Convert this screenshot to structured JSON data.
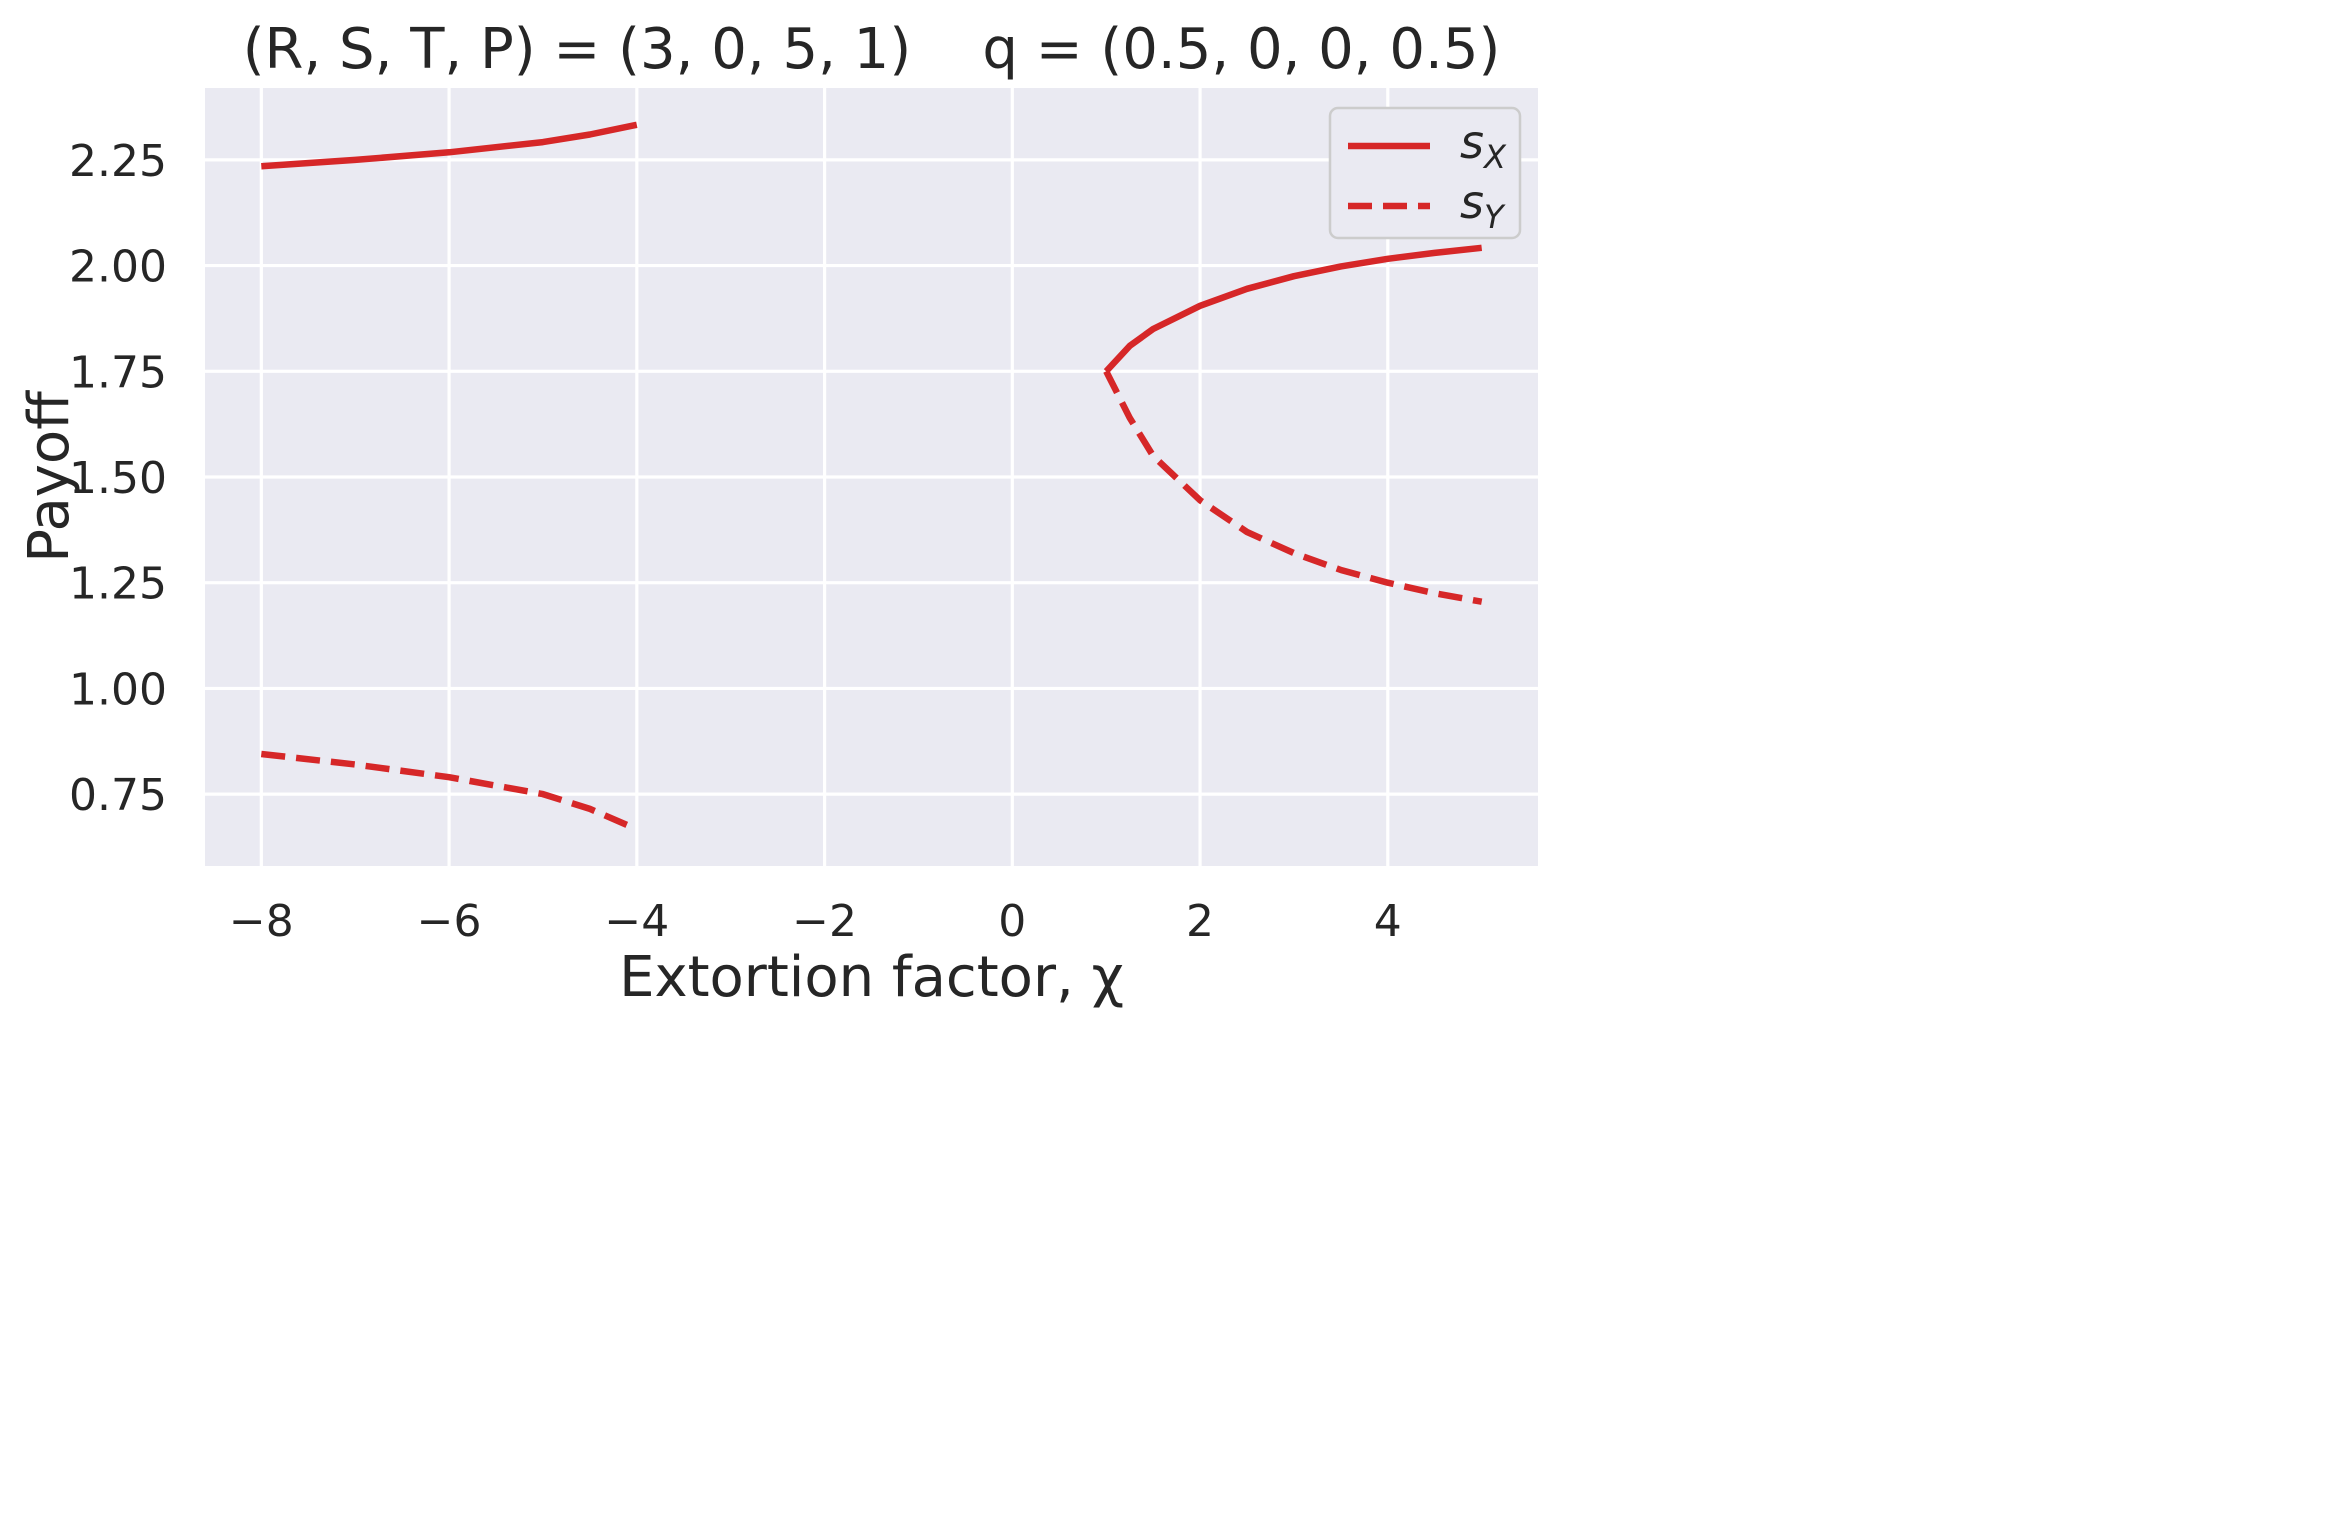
{
  "chart_data": {
    "type": "line",
    "title": "(R, S, T, P) = (3, 0, 5, 1)    q = (0.5, 0, 0, 0.5)",
    "xlabel": "Extortion factor, χ",
    "ylabel": "Payoff",
    "xlim": [
      -8.6,
      5.6
    ],
    "ylim": [
      0.58,
      2.42
    ],
    "xticks": [
      -8,
      -6,
      -4,
      -2,
      0,
      2,
      4
    ],
    "xtick_labels": [
      "−8",
      "−6",
      "−4",
      "−2",
      "0",
      "2",
      "4"
    ],
    "yticks": [
      0.75,
      1.0,
      1.25,
      1.5,
      1.75,
      2.0,
      2.25
    ],
    "ytick_labels": [
      "0.75",
      "1.00",
      "1.25",
      "1.50",
      "1.75",
      "2.00",
      "2.25"
    ],
    "grid": true,
    "legend_position": "top-right",
    "color": "#d62728",
    "series": [
      {
        "name": "sX",
        "label_main": "s",
        "label_sub": "X",
        "style": "solid",
        "segments": [
          {
            "x": [
              -8,
              -7,
              -6,
              -5,
              -4.5,
              -4
            ],
            "y": [
              2.235,
              2.25,
              2.268,
              2.292,
              2.31,
              2.333
            ]
          },
          {
            "x": [
              1,
              1.25,
              1.5,
              2,
              2.5,
              3,
              3.5,
              4,
              4.5,
              5
            ],
            "y": [
              1.75,
              1.81,
              1.85,
              1.905,
              1.945,
              1.975,
              1.998,
              2.016,
              2.03,
              2.042
            ]
          }
        ]
      },
      {
        "name": "sY",
        "label_main": "s",
        "label_sub": "Y",
        "style": "dashed",
        "segments": [
          {
            "x": [
              -8,
              -7,
              -6,
              -5,
              -4.5,
              -4
            ],
            "y": [
              0.845,
              0.82,
              0.79,
              0.75,
              0.715,
              0.667
            ]
          },
          {
            "x": [
              1,
              1.25,
              1.5,
              2,
              2.5,
              3,
              3.5,
              4,
              4.5,
              5
            ],
            "y": [
              1.75,
              1.64,
              1.55,
              1.445,
              1.37,
              1.32,
              1.28,
              1.25,
              1.225,
              1.205
            ]
          }
        ]
      }
    ]
  }
}
